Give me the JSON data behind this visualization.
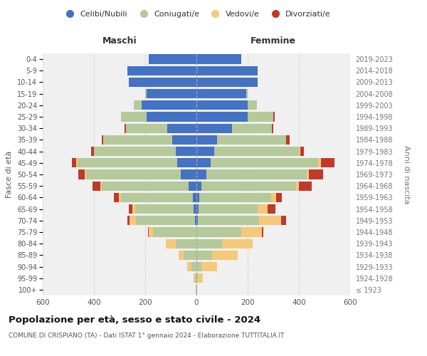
{
  "age_groups": [
    "100+",
    "95-99",
    "90-94",
    "85-89",
    "80-84",
    "75-79",
    "70-74",
    "65-69",
    "60-64",
    "55-59",
    "50-54",
    "45-49",
    "40-44",
    "35-39",
    "30-34",
    "25-29",
    "20-24",
    "15-19",
    "10-14",
    "5-9",
    "0-4"
  ],
  "birth_years": [
    "≤ 1923",
    "1924-1928",
    "1929-1933",
    "1934-1938",
    "1939-1943",
    "1944-1948",
    "1949-1953",
    "1954-1958",
    "1959-1963",
    "1964-1968",
    "1969-1973",
    "1974-1978",
    "1979-1983",
    "1984-1988",
    "1989-1993",
    "1994-1998",
    "1999-2003",
    "2004-2008",
    "2009-2013",
    "2014-2018",
    "2019-2023"
  ],
  "male": {
    "celibi": [
      0,
      0,
      0,
      0,
      0,
      0,
      5,
      10,
      15,
      30,
      60,
      75,
      80,
      95,
      115,
      195,
      215,
      195,
      265,
      270,
      185
    ],
    "coniugati": [
      2,
      5,
      20,
      50,
      80,
      170,
      230,
      230,
      280,
      340,
      370,
      390,
      320,
      270,
      160,
      100,
      30,
      5,
      0,
      0,
      0
    ],
    "vedovi": [
      0,
      5,
      15,
      20,
      40,
      15,
      25,
      10,
      8,
      5,
      5,
      5,
      0,
      0,
      0,
      0,
      0,
      0,
      0,
      0,
      0
    ],
    "divorziati": [
      0,
      0,
      0,
      0,
      0,
      5,
      10,
      15,
      20,
      30,
      25,
      15,
      10,
      5,
      5,
      0,
      0,
      0,
      0,
      0,
      0
    ]
  },
  "female": {
    "nubili": [
      0,
      0,
      0,
      0,
      0,
      0,
      5,
      8,
      12,
      20,
      40,
      55,
      70,
      80,
      140,
      200,
      200,
      195,
      240,
      240,
      175
    ],
    "coniugate": [
      2,
      5,
      20,
      60,
      100,
      175,
      240,
      230,
      280,
      370,
      390,
      420,
      330,
      270,
      155,
      100,
      35,
      5,
      0,
      0,
      0
    ],
    "vedove": [
      2,
      20,
      60,
      100,
      120,
      80,
      85,
      40,
      20,
      10,
      10,
      10,
      5,
      0,
      0,
      0,
      0,
      0,
      0,
      0,
      0
    ],
    "divorziate": [
      0,
      0,
      0,
      0,
      0,
      5,
      20,
      30,
      20,
      50,
      55,
      55,
      15,
      15,
      5,
      5,
      0,
      0,
      0,
      0,
      0
    ]
  },
  "colors": {
    "celibi": "#4472c4",
    "coniugati": "#b5c99a",
    "vedovi": "#f5c97a",
    "divorziati": "#c0392b"
  },
  "legend_labels": [
    "Celibi/Nubili",
    "Coniugati/e",
    "Vedovi/e",
    "Divorziati/e"
  ],
  "xlim": 600,
  "title": "Popolazione per età, sesso e stato civile - 2024",
  "subtitle": "COMUNE DI CRISPIANO (TA) - Dati ISTAT 1° gennaio 2024 - Elaborazione TUTTITALIA.IT",
  "xlabel_maschi": "Maschi",
  "xlabel_femmine": "Femmine",
  "ylabel": "Fasce di età",
  "ylabel_right": "Anni di nascita",
  "bg_color": "#f0f0f0"
}
